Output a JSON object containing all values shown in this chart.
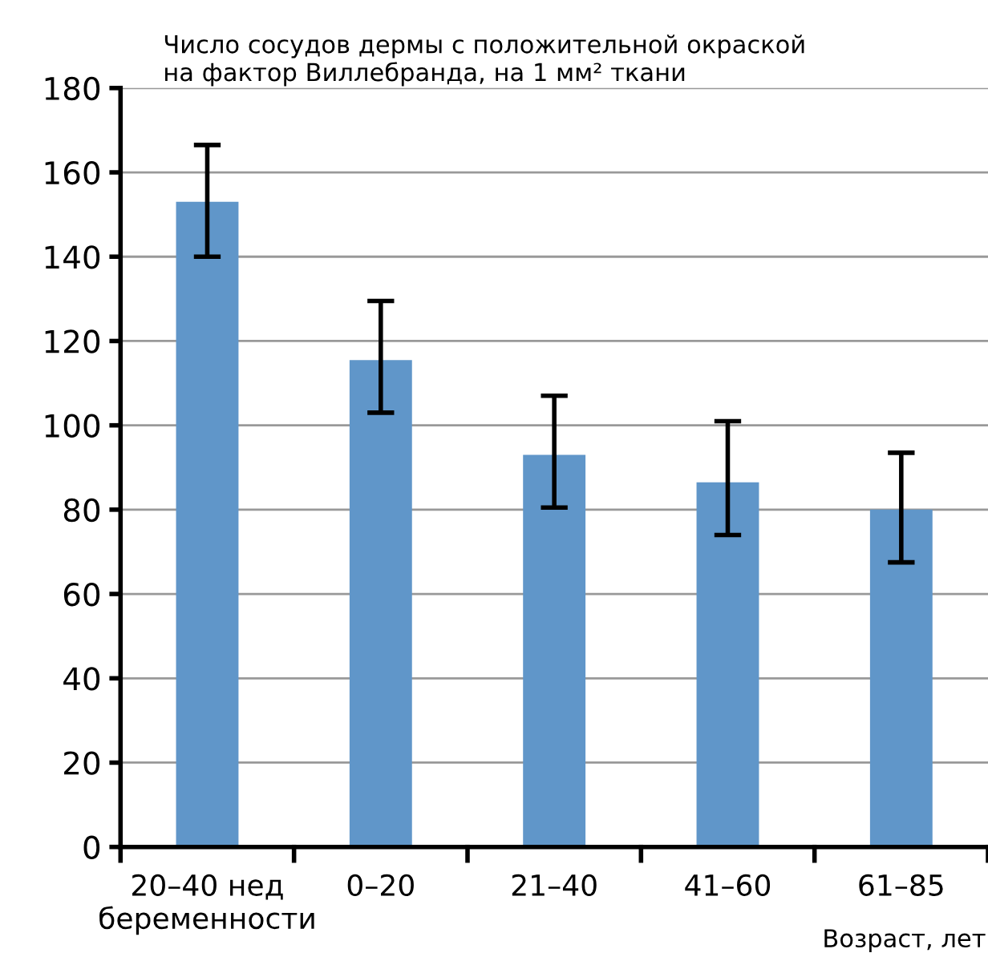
{
  "chart_data": {
    "type": "bar",
    "title": "Число сосудов дермы с положительной окраской\nна фактор Виллебранда, на 1 мм² ткани",
    "xlabel": "Возраст, лет",
    "categories": [
      "20–40 нед\nбеременности",
      "0–20",
      "21–40",
      "41–60",
      "61–85"
    ],
    "values": [
      153,
      115.5,
      93,
      86.5,
      80
    ],
    "errors": [
      [
        140,
        166.5
      ],
      [
        103,
        129.5
      ],
      [
        80.5,
        107
      ],
      [
        74,
        101
      ],
      [
        67.5,
        93.5
      ]
    ],
    "color": "#6096c9",
    "ylim": [
      0,
      180
    ],
    "yticks": [
      0,
      20,
      40,
      60,
      80,
      100,
      120,
      140,
      160,
      180
    ],
    "grid": "y"
  }
}
